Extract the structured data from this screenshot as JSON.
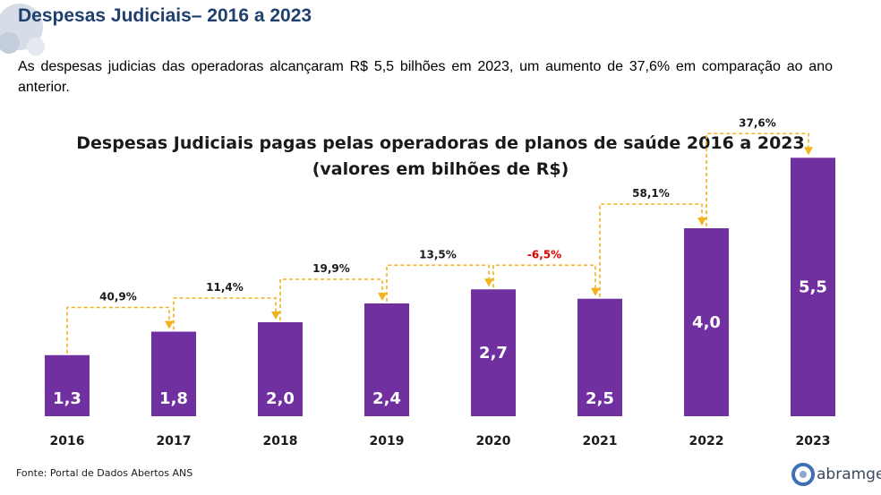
{
  "slide": {
    "title": "Despesas Judiciais– 2016 a 2023",
    "intro": "As despesas judicias das operadoras alcançaram R$ 5,5 bilhões em 2023, um aumento de 37,6% em comparação ao ano anterior.",
    "source": "Fonte: Portal de Dados Abertos ANS",
    "brand": "abramge"
  },
  "colors": {
    "bar": "#7030a0",
    "arrow": "#f2b21c",
    "positive_label": "#1a1a1a",
    "negative_label": "#e00000"
  },
  "chart_data": {
    "type": "bar",
    "title": "Despesas Judiciais pagas pelas operadoras de planos de saúde 2016 a 2023",
    "subtitle": "(valores em bilhões de R$)",
    "categories": [
      "2016",
      "2017",
      "2018",
      "2019",
      "2020",
      "2021",
      "2022",
      "2023"
    ],
    "values": [
      1.3,
      1.8,
      2.0,
      2.4,
      2.7,
      2.5,
      4.0,
      5.5
    ],
    "value_labels": [
      "1,3",
      "1,8",
      "2,0",
      "2,4",
      "2,7",
      "2,5",
      "4,0",
      "5,5"
    ],
    "changes": [
      "40,9%",
      "11,4%",
      "19,9%",
      "13,5%",
      "-6,5%",
      "58,1%",
      "37,6%"
    ],
    "xlabel": "",
    "ylabel": "",
    "ylim": [
      0,
      6.0
    ],
    "grid": false,
    "legend": "none"
  }
}
